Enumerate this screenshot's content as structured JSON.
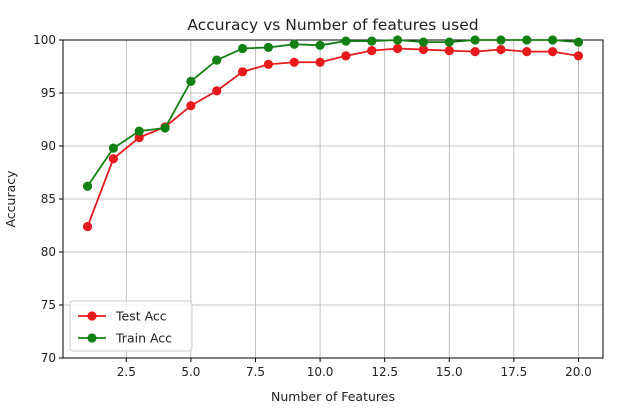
{
  "chart_data": {
    "type": "line",
    "title": "Accuracy vs Number of features used",
    "xlabel": "Number of Features",
    "ylabel": "Accuracy",
    "xlim": [
      0.05,
      20.95
    ],
    "ylim": [
      70,
      100
    ],
    "xticks": [
      2.5,
      5.0,
      7.5,
      10.0,
      12.5,
      15.0,
      17.5,
      20.0
    ],
    "xtick_labels": [
      "2.5",
      "5.0",
      "7.5",
      "10.0",
      "12.5",
      "15.0",
      "17.5",
      "20.0"
    ],
    "yticks": [
      70,
      75,
      80,
      85,
      90,
      95,
      100
    ],
    "ytick_labels": [
      "70",
      "75",
      "80",
      "85",
      "90",
      "95",
      "100"
    ],
    "grid": true,
    "legend_position": "lower-left",
    "x": [
      1,
      2,
      3,
      4,
      5,
      6,
      7,
      8,
      9,
      10,
      11,
      12,
      13,
      14,
      15,
      16,
      17,
      18,
      19,
      20
    ],
    "series": [
      {
        "name": "Test Acc",
        "color": "#e8191c",
        "marker": "circle",
        "values": [
          82.4,
          88.8,
          90.8,
          91.8,
          93.8,
          95.2,
          97.0,
          97.7,
          97.9,
          97.9,
          98.5,
          99.0,
          99.2,
          99.1,
          99.0,
          98.9,
          99.1,
          98.9,
          98.9,
          98.5
        ]
      },
      {
        "name": "Train Acc",
        "color": "#138013",
        "marker": "circle",
        "values": [
          86.2,
          89.8,
          91.4,
          91.7,
          96.1,
          98.1,
          99.2,
          99.3,
          99.6,
          99.5,
          99.9,
          99.9,
          100.0,
          99.8,
          99.8,
          100.0,
          100.0,
          100.0,
          100.0,
          99.8
        ]
      }
    ]
  }
}
